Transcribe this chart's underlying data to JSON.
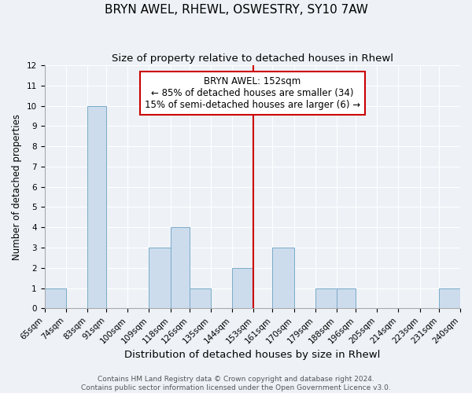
{
  "title": "BRYN AWEL, RHEWL, OSWESTRY, SY10 7AW",
  "subtitle": "Size of property relative to detached houses in Rhewl",
  "xlabel": "Distribution of detached houses by size in Rhewl",
  "ylabel": "Number of detached properties",
  "bin_edges": [
    65,
    74,
    83,
    91,
    100,
    109,
    118,
    126,
    135,
    144,
    153,
    161,
    170,
    179,
    188,
    196,
    205,
    214,
    223,
    231,
    240
  ],
  "bar_heights": [
    1,
    0,
    10,
    0,
    0,
    3,
    4,
    1,
    0,
    2,
    0,
    3,
    0,
    1,
    1,
    0,
    0,
    0,
    0,
    1
  ],
  "bar_color": "#ccdced",
  "bar_edge_color": "#7aaac8",
  "vline_x": 153,
  "vline_color": "#cc0000",
  "ylim": [
    0,
    12
  ],
  "yticks": [
    0,
    1,
    2,
    3,
    4,
    5,
    6,
    7,
    8,
    9,
    10,
    11,
    12
  ],
  "annotation_title": "BRYN AWEL: 152sqm",
  "annotation_line1": "← 85% of detached houses are smaller (34)",
  "annotation_line2": "15% of semi-detached houses are larger (6) →",
  "annotation_box_color": "#cc0000",
  "footer_line1": "Contains HM Land Registry data © Crown copyright and database right 2024.",
  "footer_line2": "Contains public sector information licensed under the Open Government Licence v3.0.",
  "bg_color": "#eef2f7",
  "grid_color": "#ffffff",
  "title_fontsize": 11,
  "subtitle_fontsize": 9.5,
  "xlabel_fontsize": 9.5,
  "ylabel_fontsize": 8.5,
  "tick_fontsize": 7.5,
  "footer_fontsize": 6.5,
  "annotation_fontsize": 8.5
}
